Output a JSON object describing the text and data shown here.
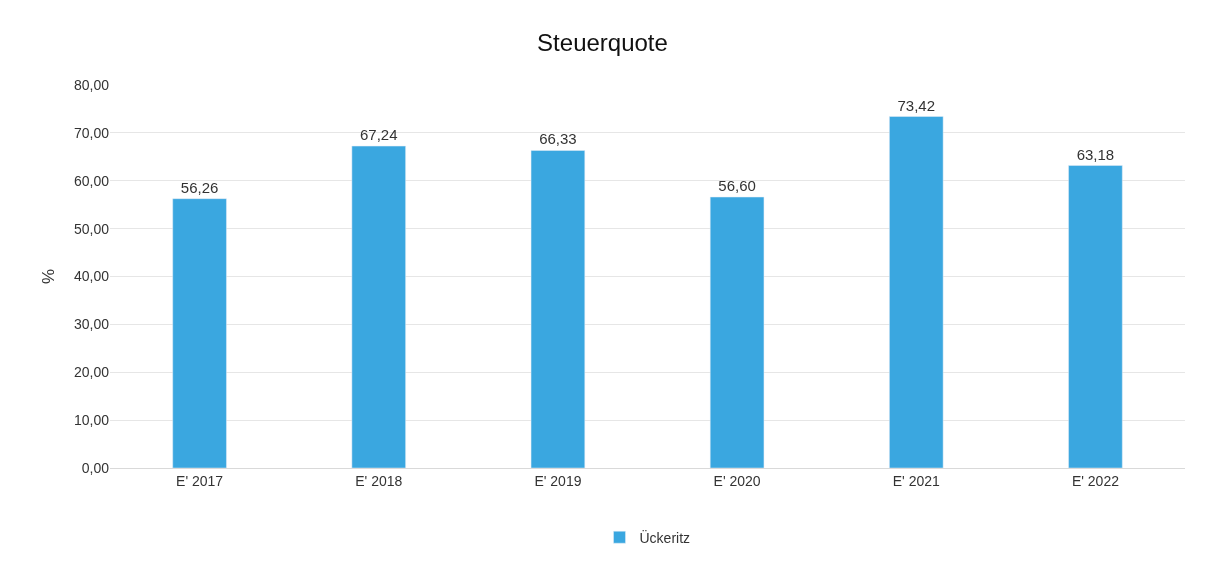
{
  "chart_data": {
    "type": "bar",
    "title": "Steuerquote",
    "ylabel": "%",
    "categories": [
      "E' 2017",
      "E' 2018",
      "E' 2019",
      "E' 2020",
      "E' 2021",
      "E' 2022"
    ],
    "series": [
      {
        "name": "Ückeritz",
        "color": "#3aa7e0",
        "values": [
          56.26,
          67.24,
          66.33,
          56.6,
          73.42,
          63.18
        ],
        "value_labels": [
          "56,26",
          "67,24",
          "66,33",
          "56,60",
          "73,42",
          "63,18"
        ]
      }
    ],
    "ylim": [
      0,
      80
    ],
    "yticks": [
      {
        "value": 0,
        "label": "0,00"
      },
      {
        "value": 10,
        "label": "10,00"
      },
      {
        "value": 20,
        "label": "20,00"
      },
      {
        "value": 30,
        "label": "30,00"
      },
      {
        "value": 40,
        "label": "40,00"
      },
      {
        "value": 50,
        "label": "50,00"
      },
      {
        "value": 60,
        "label": "60,00"
      },
      {
        "value": 70,
        "label": "70,00"
      },
      {
        "value": 80,
        "label": "80,00"
      }
    ],
    "grid": "y",
    "legend": "bottom"
  }
}
